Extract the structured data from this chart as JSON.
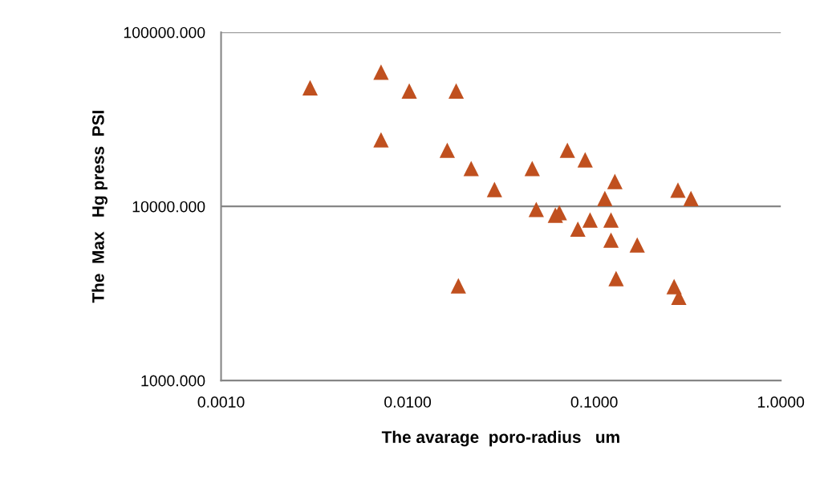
{
  "chart_data": {
    "type": "scatter",
    "xlabel": "The avarage  poro-radius   um",
    "ylabel": "The  Max   Hg press  PSI",
    "log": "xy",
    "marker": "triangle",
    "grid": "y",
    "legend": false,
    "xlim": [
      0.001,
      1
    ],
    "ylim": [
      1000,
      100000
    ],
    "xticks": [
      {
        "value": 0.001,
        "label": "0.0010"
      },
      {
        "value": 0.01,
        "label": "0.0100"
      },
      {
        "value": 0.1,
        "label": "0.1000"
      },
      {
        "value": 1,
        "label": "1.0000"
      }
    ],
    "yticks": [
      {
        "value": 1000,
        "label": "1000.000"
      },
      {
        "value": 10000,
        "label": "10000.000"
      },
      {
        "value": 100000,
        "label": "100000.000"
      }
    ],
    "series": [
      {
        "color": "#c0501f",
        "x": [
          0.003,
          0.0072,
          0.0102,
          0.0182,
          0.0072,
          0.0163,
          0.0219,
          0.0292,
          0.0187,
          0.0465,
          0.0718,
          0.0894,
          0.129,
          0.114,
          0.0489,
          0.065,
          0.0619,
          0.095,
          0.0817,
          0.123,
          0.123,
          0.17,
          0.131,
          0.281,
          0.33,
          0.268,
          0.284
        ],
        "values": [
          48000,
          59000,
          46000,
          46000,
          24100,
          21000,
          16500,
          12500,
          3500,
          16500,
          21000,
          18500,
          13900,
          11100,
          9600,
          9200,
          8900,
          8350,
          7400,
          8350,
          6400,
          6000,
          3850,
          12400,
          11100,
          3460,
          3010
        ]
      }
    ]
  }
}
